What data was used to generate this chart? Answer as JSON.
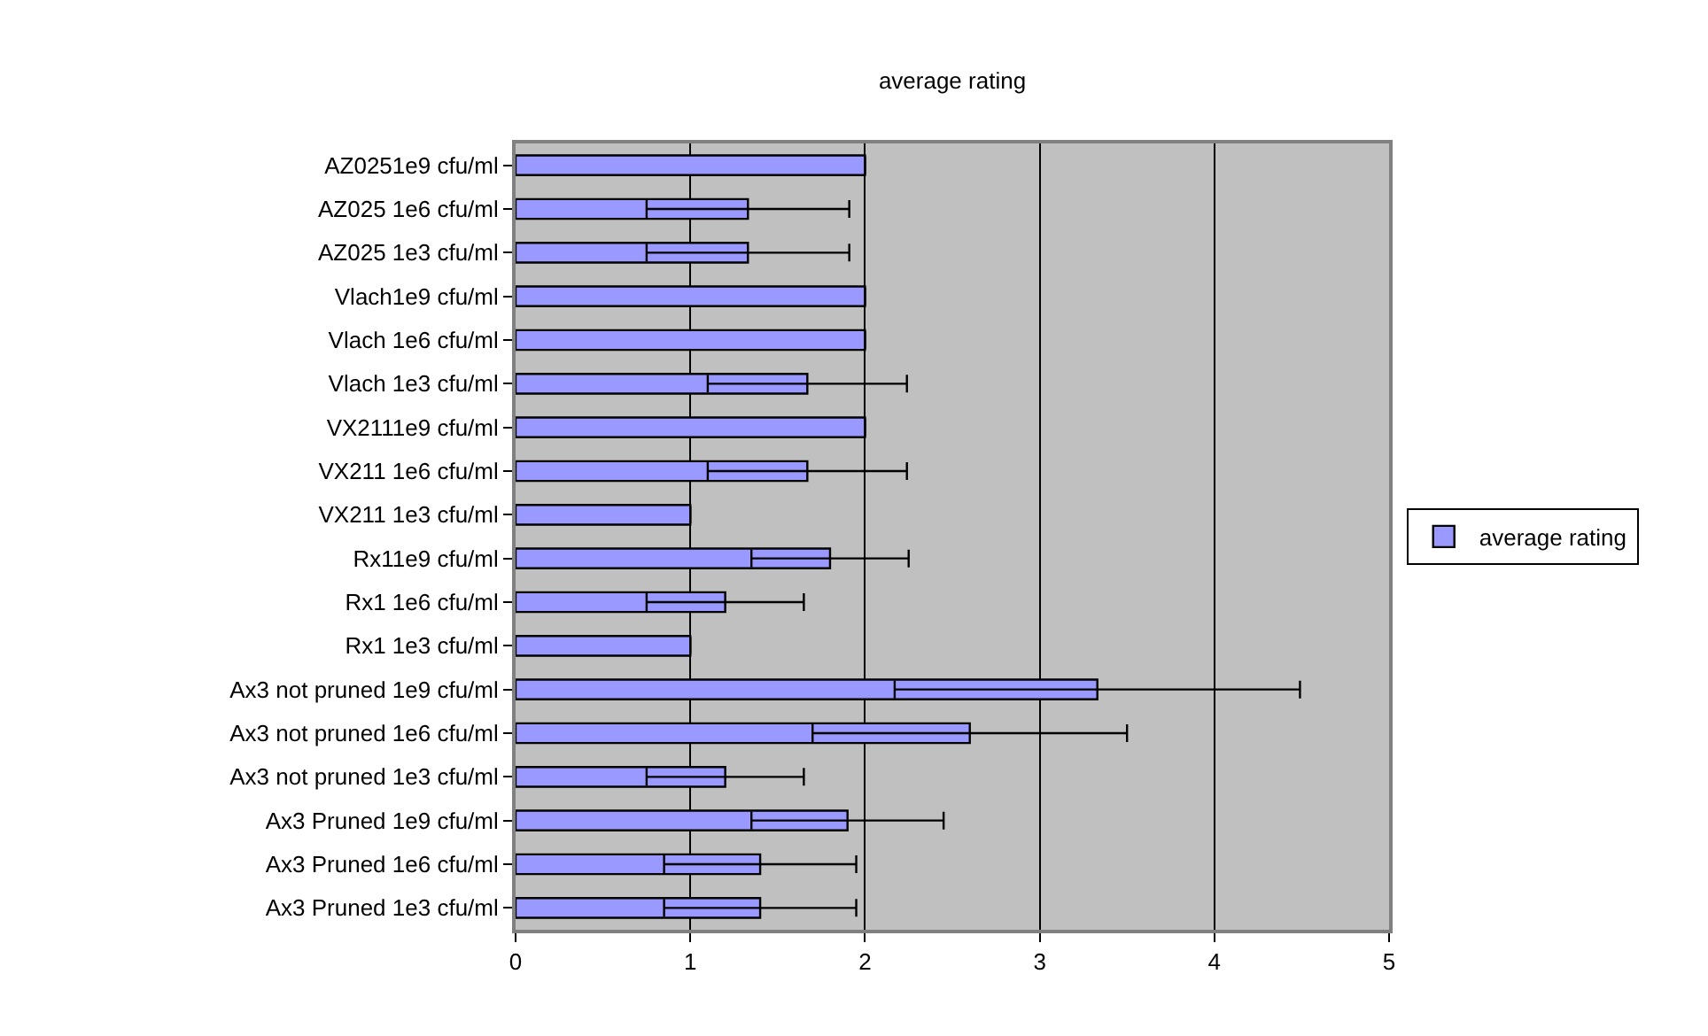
{
  "chart_data": {
    "type": "bar",
    "orientation": "horizontal",
    "title": "average rating",
    "categories": [
      "AZ0251e9 cfu/ml",
      "AZ025 1e6 cfu/ml",
      "AZ025 1e3 cfu/ml",
      "Vlach1e9 cfu/ml",
      "Vlach 1e6 cfu/ml",
      "Vlach 1e3 cfu/ml",
      "VX2111e9 cfu/ml",
      "VX211 1e6 cfu/ml",
      "VX211 1e3 cfu/ml",
      "Rx11e9 cfu/ml",
      "Rx1 1e6 cfu/ml",
      "Rx1 1e3 cfu/ml",
      "Ax3 not pruned 1e9 cfu/ml",
      "Ax3 not pruned 1e6 cfu/ml",
      "Ax3 not pruned 1e3 cfu/ml",
      "Ax3 Pruned 1e9 cfu/ml",
      "Ax3 Pruned 1e6 cfu/ml",
      "Ax3 Pruned 1e3 cfu/ml"
    ],
    "series": [
      {
        "name": "average rating",
        "color": "#9999ff",
        "values": [
          2,
          1.33,
          1.33,
          2,
          2,
          1.67,
          2,
          1.67,
          1,
          1.8,
          1.2,
          1,
          3.33,
          2.6,
          1.2,
          1.9,
          1.4,
          1.4
        ],
        "errors": [
          0,
          0.58,
          0.58,
          0,
          0,
          0.57,
          0,
          0.57,
          0,
          0.45,
          0.45,
          0,
          1.16,
          0.9,
          0.45,
          0.55,
          0.55,
          0.55
        ]
      }
    ],
    "xlim": [
      0,
      5
    ],
    "xticks": [
      0,
      1,
      2,
      3,
      4,
      5
    ],
    "grid": "x",
    "legend": "right"
  }
}
